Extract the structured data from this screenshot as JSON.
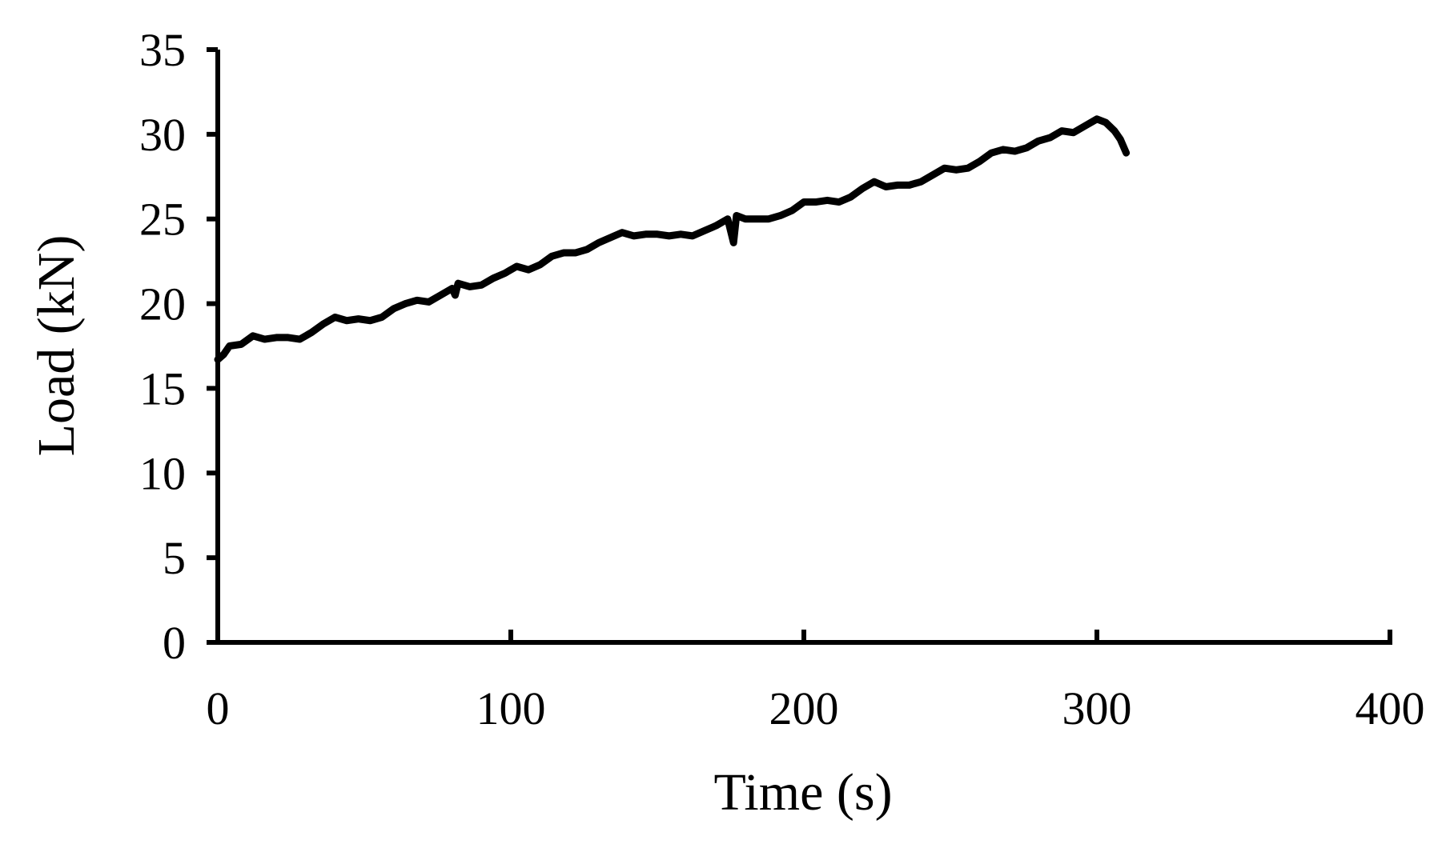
{
  "chart_data": {
    "type": "line",
    "x_label": "Time (s)",
    "y_label": "Load (kN)",
    "xlim": [
      0,
      400
    ],
    "xticks": [
      0,
      100,
      200,
      300,
      400
    ],
    "ylim": [
      0,
      35
    ],
    "yticks": [
      0,
      5,
      10,
      15,
      20,
      25,
      30,
      35
    ],
    "series": [
      {
        "color": "#000000",
        "x": [
          0,
          2,
          4,
          8,
          12,
          16,
          20,
          24,
          28,
          32,
          36,
          40,
          44,
          48,
          52,
          56,
          60,
          64,
          68,
          72,
          76,
          80,
          81,
          82,
          86,
          90,
          94,
          98,
          102,
          106,
          110,
          114,
          118,
          122,
          126,
          130,
          134,
          138,
          142,
          146,
          150,
          154,
          158,
          162,
          166,
          170,
          174,
          176,
          177,
          180,
          184,
          188,
          192,
          196,
          200,
          204,
          208,
          212,
          216,
          220,
          224,
          228,
          232,
          236,
          240,
          244,
          248,
          252,
          256,
          260,
          264,
          268,
          272,
          276,
          280,
          284,
          288,
          292,
          296,
          300,
          303,
          306,
          308,
          310
        ],
        "values": [
          16.7,
          17.0,
          17.5,
          17.6,
          18.1,
          17.9,
          18.0,
          18.0,
          17.9,
          18.3,
          18.8,
          19.2,
          19.0,
          19.1,
          19.0,
          19.2,
          19.7,
          20.0,
          20.2,
          20.1,
          20.5,
          20.9,
          20.5,
          21.2,
          21.0,
          21.1,
          21.5,
          21.8,
          22.2,
          22.0,
          22.3,
          22.8,
          23.0,
          23.0,
          23.2,
          23.6,
          23.9,
          24.2,
          24.0,
          24.1,
          24.1,
          24.0,
          24.1,
          24.0,
          24.3,
          24.6,
          25.0,
          23.6,
          25.2,
          25.0,
          25.0,
          25.0,
          25.2,
          25.5,
          26.0,
          26.0,
          26.1,
          26.0,
          26.3,
          26.8,
          27.2,
          26.9,
          27.0,
          27.0,
          27.2,
          27.6,
          28.0,
          27.9,
          28.0,
          28.4,
          28.9,
          29.1,
          29.0,
          29.2,
          29.6,
          29.8,
          30.2,
          30.1,
          30.5,
          30.9,
          30.7,
          30.2,
          29.7,
          28.9
        ]
      }
    ]
  }
}
